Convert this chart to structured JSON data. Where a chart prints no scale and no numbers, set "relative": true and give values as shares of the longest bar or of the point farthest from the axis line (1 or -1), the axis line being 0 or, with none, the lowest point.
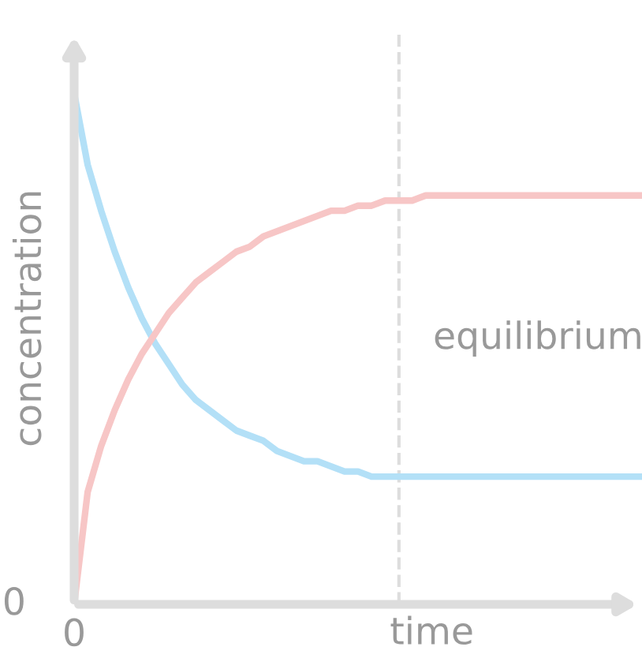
{
  "chart_data": {
    "type": "line",
    "relative": true,
    "xlabel": "time",
    "ylabel": "concentration",
    "categories": [
      null,
      null,
      null,
      null,
      null,
      null,
      null,
      null,
      null,
      null,
      null,
      null,
      null,
      null,
      null,
      null,
      null,
      null,
      null,
      null,
      null,
      null,
      null,
      null,
      null,
      null,
      null,
      null,
      null,
      null,
      null,
      null,
      null,
      null,
      null,
      null,
      null,
      null,
      null,
      null,
      null,
      null,
      null
    ],
    "annotations": [
      "0",
      "0",
      "equilibrium"
    ],
    "series": [
      {
        "color": "#b3e0f7",
        "values": [
          1.0,
          0.86,
          0.77,
          0.69,
          0.62,
          0.56,
          0.51,
          0.47,
          0.43,
          0.4,
          0.38,
          0.36,
          0.34,
          0.33,
          0.32,
          0.3,
          0.29,
          0.28,
          0.28,
          0.27,
          0.26,
          0.26,
          0.25,
          0.25,
          0.25,
          0.25,
          0.25,
          0.25,
          0.25,
          0.25,
          0.25,
          0.25,
          0.25,
          0.25,
          0.25,
          0.25,
          0.25,
          0.25,
          0.25,
          0.25,
          0.25,
          0.25,
          0.25
        ]
      },
      {
        "color": "#f7c6c6",
        "values": [
          0,
          0.22,
          0.31,
          0.38,
          0.44,
          0.49,
          0.53,
          0.57,
          0.6,
          0.63,
          0.65,
          0.67,
          0.69,
          0.7,
          0.72,
          0.73,
          0.74,
          0.75,
          0.76,
          0.77,
          0.77,
          0.78,
          0.78,
          0.79,
          0.79,
          0.79,
          0.8,
          0.8,
          0.8,
          0.8,
          0.8,
          0.8,
          0.8,
          0.8,
          0.8,
          0.8,
          0.8,
          0.8,
          0.8,
          0.8,
          0.8,
          0.8,
          0.8
        ]
      }
    ]
  }
}
